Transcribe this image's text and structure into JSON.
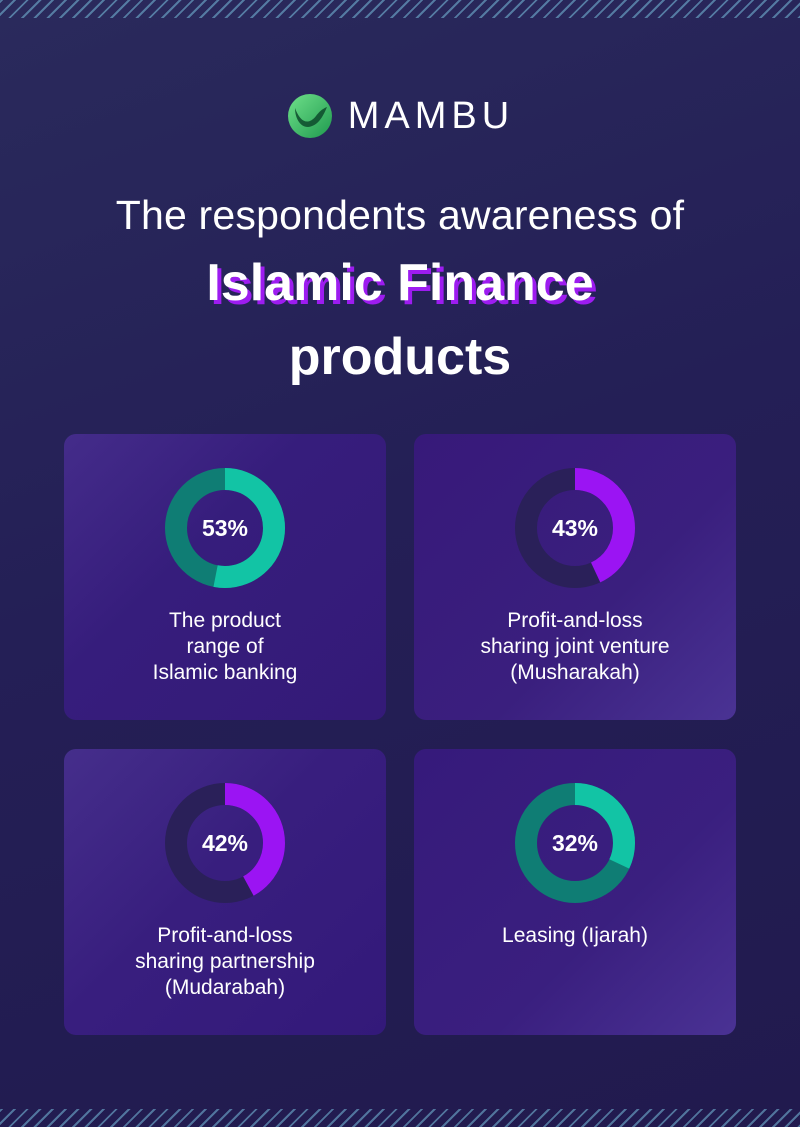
{
  "logo": {
    "text": "MAMBU",
    "icon": "mambu-logo-icon"
  },
  "heading": {
    "subtitle": "The respondents awareness of",
    "title_line1": "Islamic Finance",
    "title_line2": "products"
  },
  "colors": {
    "teal": "#12c4a5",
    "teal_dark": "#0f7d74",
    "purple": "#9b14f3",
    "track_dark": "#2a2059",
    "background": "#252057",
    "title_shadow": "#9d1cf0"
  },
  "chart_data": [
    {
      "type": "pie",
      "value": 53,
      "value_label": "53%",
      "color": "teal",
      "label_lines": [
        "The product",
        "range of",
        "Islamic banking"
      ]
    },
    {
      "type": "pie",
      "value": 43,
      "value_label": "43%",
      "color": "purple",
      "label_lines": [
        "Profit-and-loss",
        "sharing joint venture",
        "(Musharakah)"
      ]
    },
    {
      "type": "pie",
      "value": 42,
      "value_label": "42%",
      "color": "purple",
      "label_lines": [
        "Profit-and-loss",
        "sharing partnership",
        "(Mudarabah)"
      ]
    },
    {
      "type": "pie",
      "value": 32,
      "value_label": "32%",
      "color": "teal",
      "label_lines": [
        "Leasing (Ijarah)"
      ]
    }
  ]
}
